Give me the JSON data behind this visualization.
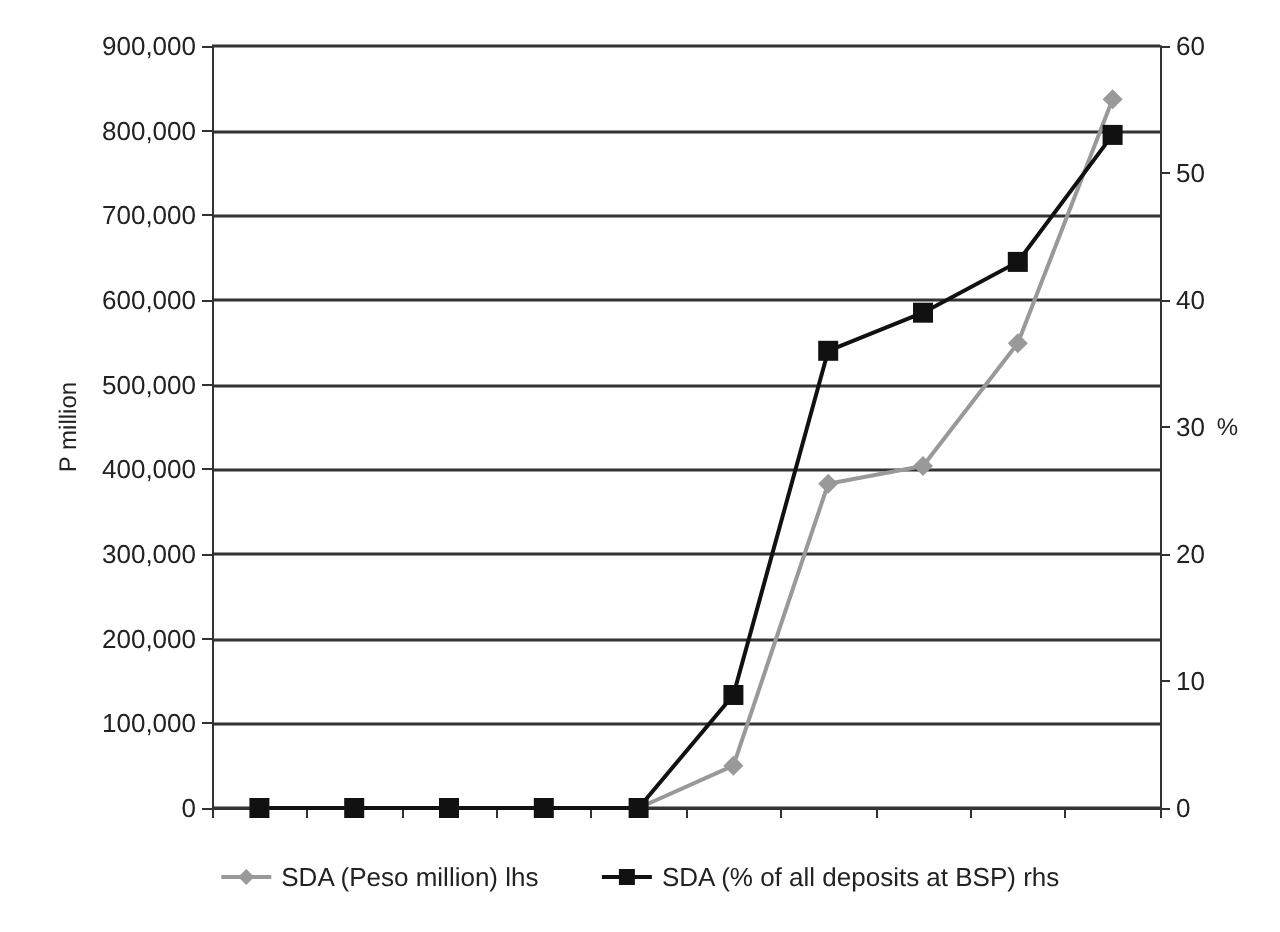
{
  "chart_data": {
    "type": "line",
    "ylabel": "P million",
    "y2label": "%",
    "categories": [
      null,
      null,
      null,
      null,
      null,
      null,
      null,
      null,
      null,
      null
    ],
    "series": [
      {
        "name": "SDA (Peso million) lhs",
        "color": "#999999",
        "marker": "diamond",
        "values": [
          0,
          0,
          0,
          0,
          0,
          50000,
          383000,
          404000,
          549000,
          837000
        ]
      },
      {
        "name": "SDA (% of all deposits at BSP) rhs",
        "color": "#111111",
        "marker": "square",
        "axis": "y2",
        "values": [
          0,
          0,
          0,
          0,
          0,
          8.9,
          36,
          39,
          43,
          53
        ]
      }
    ],
    "ylim": [
      0,
      900000
    ],
    "yticks": [
      0,
      {
        "value": 100000,
        "label": "100,000"
      },
      {
        "value": 200000,
        "label": "200,000"
      },
      {
        "value": 300000,
        "label": "300,000"
      },
      {
        "value": 400000,
        "label": "400,000"
      },
      {
        "value": 500000,
        "label": "500,000"
      },
      {
        "value": 600000,
        "label": "600,000"
      },
      {
        "value": 700000,
        "label": "700,000"
      },
      {
        "value": 800000,
        "label": "800,000"
      },
      {
        "value": 900000,
        "label": "900,000"
      }
    ],
    "y2lim": [
      0,
      60
    ],
    "y2ticks": [
      0,
      10,
      20,
      30,
      40,
      50,
      60
    ],
    "grid": "y",
    "legend": "bottom",
    "line_style": "solid"
  }
}
